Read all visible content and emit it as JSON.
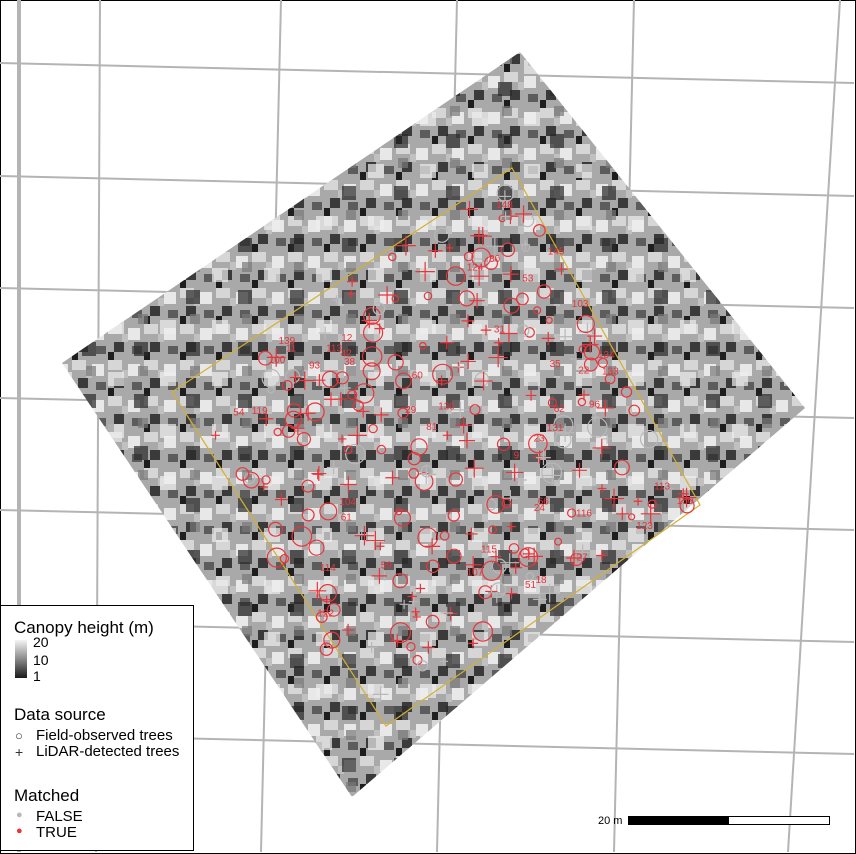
{
  "legend": {
    "canopy_title": "Canopy height (m)",
    "canopy_ticks": [
      "20",
      "10",
      "1"
    ],
    "source_title": "Data source",
    "source_items": [
      "Field-observed trees",
      "LiDAR-detected trees"
    ],
    "matched_title": "Matched",
    "matched_items": [
      "FALSE",
      "TRUE"
    ]
  },
  "scalebar": {
    "label": "20 m"
  },
  "colors": {
    "matched_true": "#e8343a",
    "matched_false": "#b8b8b8",
    "plot_outline": "#d4b030",
    "grid": "#b4b4b4"
  },
  "tree_labels": [
    "119",
    "12",
    "18",
    "123",
    "59",
    "116",
    "29",
    "62",
    "22",
    "9",
    "30",
    "31",
    "54",
    "122",
    "134",
    "42",
    "133",
    "61",
    "11",
    "113",
    "114",
    "38",
    "96",
    "93",
    "107",
    "104",
    "130",
    "103",
    "150",
    "115",
    "124",
    "35",
    "23",
    "81",
    "60",
    "145",
    "131",
    "66",
    "113",
    "139",
    "53",
    "100",
    "27",
    "148",
    "51",
    "24"
  ]
}
